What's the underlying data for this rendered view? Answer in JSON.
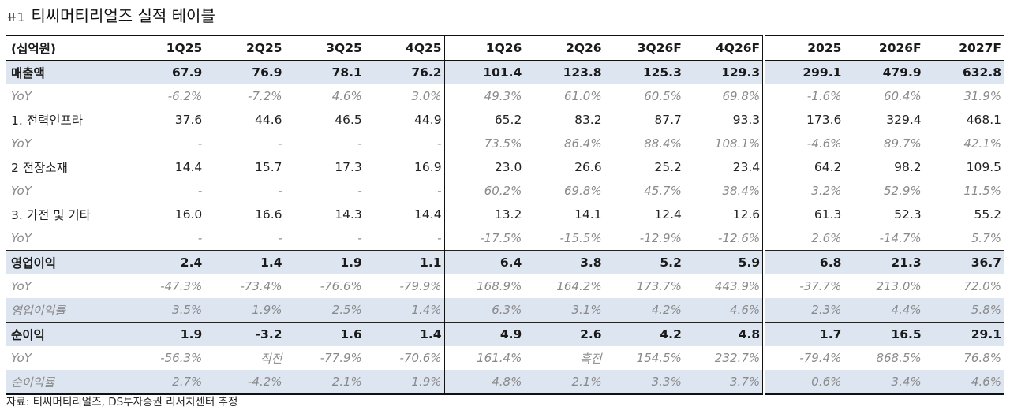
{
  "title": {
    "prefix": "표1",
    "text": "티씨머티리얼즈 실적 테이블"
  },
  "table": {
    "headers": [
      "(십억원)",
      "1Q25",
      "2Q25",
      "3Q25",
      "4Q25",
      "1Q26",
      "2Q26",
      "3Q26F",
      "4Q26F",
      "2025",
      "2026F",
      "2027F"
    ],
    "rows": [
      {
        "type": "major",
        "cells": [
          "매출액",
          "67.9",
          "76.9",
          "78.1",
          "76.2",
          "101.4",
          "123.8",
          "125.3",
          "129.3",
          "299.1",
          "479.9",
          "632.8"
        ]
      },
      {
        "type": "yoy",
        "cells": [
          "YoY",
          "-6.2%",
          "-7.2%",
          "4.6%",
          "3.0%",
          "49.3%",
          "61.0%",
          "60.5%",
          "69.8%",
          "-1.6%",
          "60.4%",
          "31.9%"
        ]
      },
      {
        "type": "sub",
        "cells": [
          "1. 전력인프라",
          "37.6",
          "44.6",
          "46.5",
          "44.9",
          "65.2",
          "83.2",
          "87.7",
          "93.3",
          "173.6",
          "329.4",
          "468.1"
        ]
      },
      {
        "type": "yoy",
        "cells": [
          "YoY",
          "-",
          "-",
          "-",
          "-",
          "73.5%",
          "86.4%",
          "88.4%",
          "108.1%",
          "-4.6%",
          "89.7%",
          "42.1%"
        ]
      },
      {
        "type": "sub",
        "cells": [
          "2 전장소재",
          "14.4",
          "15.7",
          "17.3",
          "16.9",
          "23.0",
          "26.6",
          "25.2",
          "23.4",
          "64.2",
          "98.2",
          "109.5"
        ]
      },
      {
        "type": "yoy",
        "cells": [
          "YoY",
          "-",
          "-",
          "-",
          "-",
          "60.2%",
          "69.8%",
          "45.7%",
          "38.4%",
          "3.2%",
          "52.9%",
          "11.5%"
        ]
      },
      {
        "type": "sub",
        "cells": [
          "3. 가전 및 기타",
          "16.0",
          "16.6",
          "14.3",
          "14.4",
          "13.2",
          "14.1",
          "12.4",
          "12.6",
          "61.3",
          "52.3",
          "55.2"
        ]
      },
      {
        "type": "yoy",
        "cells": [
          "YoY",
          "-",
          "-",
          "-",
          "-",
          "-17.5%",
          "-15.5%",
          "-12.9%",
          "-12.6%",
          "2.6%",
          "-14.7%",
          "5.7%"
        ]
      },
      {
        "type": "major",
        "cells": [
          "영업이익",
          "2.4",
          "1.4",
          "1.9",
          "1.1",
          "6.4",
          "3.8",
          "5.2",
          "5.9",
          "6.8",
          "21.3",
          "36.7"
        ]
      },
      {
        "type": "yoy",
        "cells": [
          "YoY",
          "-47.3%",
          "-73.4%",
          "-76.6%",
          "-79.9%",
          "168.9%",
          "164.2%",
          "173.7%",
          "443.9%",
          "-37.7%",
          "213.0%",
          "72.0%"
        ]
      },
      {
        "type": "margin",
        "cells": [
          "영업이익률",
          "3.5%",
          "1.9%",
          "2.5%",
          "1.4%",
          "6.3%",
          "3.1%",
          "4.2%",
          "4.6%",
          "2.3%",
          "4.4%",
          "5.8%"
        ]
      },
      {
        "type": "major",
        "cells": [
          "순이익",
          "1.9",
          "-3.2",
          "1.6",
          "1.4",
          "4.9",
          "2.6",
          "4.2",
          "4.8",
          "1.7",
          "16.5",
          "29.1"
        ]
      },
      {
        "type": "yoy",
        "cells": [
          "YoY",
          "-56.3%",
          "적전",
          "-77.9%",
          "-70.6%",
          "161.4%",
          "흑전",
          "154.5%",
          "232.7%",
          "-79.4%",
          "868.5%",
          "76.8%"
        ]
      },
      {
        "type": "margin",
        "cells": [
          "순이익률",
          "2.7%",
          "-4.2%",
          "2.1%",
          "1.9%",
          "4.8%",
          "2.1%",
          "3.3%",
          "3.7%",
          "0.6%",
          "3.4%",
          "4.6%"
        ]
      }
    ]
  },
  "source": "자료: 티씨머티리얼즈, DS투자증권 리서치센터 추정"
}
